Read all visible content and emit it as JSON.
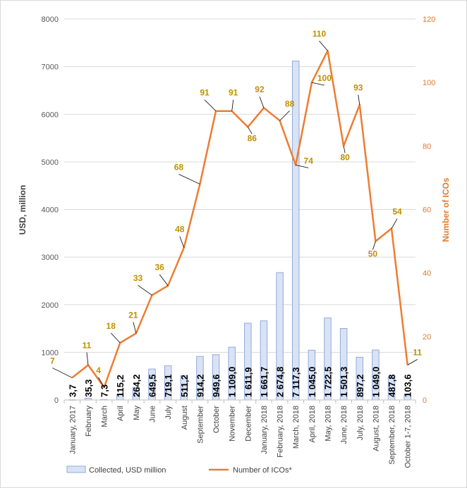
{
  "chart_data": {
    "type": "bar+line",
    "title": "",
    "categories": [
      "January, 2017",
      "February",
      "March",
      "April",
      "May",
      "June",
      "July",
      "August",
      "September",
      "October",
      "November",
      "December",
      "January, 2018",
      "February, 2018",
      "March, 2018",
      "April, 2018",
      "May, 2018",
      "June, 2018",
      "July, 2018",
      "August, 2018",
      "September, 2018",
      "October 1-7, 2018"
    ],
    "series": [
      {
        "name": "Collected, USD million",
        "type": "bar",
        "axis": "left",
        "color": "#dae3f3",
        "border": "#8faadc",
        "values": [
          3.7,
          35.3,
          7.3,
          115.2,
          264.2,
          649.5,
          719.1,
          511.2,
          914.2,
          949.6,
          1109.0,
          1611.9,
          1661.7,
          2674.8,
          7117.3,
          1045.0,
          1722.5,
          1501.3,
          897.2,
          1049.0,
          487.8,
          103.6
        ],
        "labels": [
          "3,7",
          "35,3",
          "7,3",
          "115,2",
          "264,2",
          "649,5",
          "719,1",
          "511,2",
          "914,2",
          "949,6",
          "1 109,0",
          "1 611,9",
          "1 661,7",
          "2 674,8",
          "7 117,3",
          "1 045,0",
          "1 722,5",
          "1 501,3",
          "897,2",
          "1 049,0",
          "487,8",
          "103,6"
        ]
      },
      {
        "name": "Number of ICOs*",
        "type": "line",
        "axis": "right",
        "color": "#ed7d31",
        "values": [
          7,
          11,
          4,
          18,
          21,
          33,
          36,
          48,
          68,
          91,
          91,
          86,
          92,
          88,
          74,
          100,
          110,
          80,
          93,
          50,
          54,
          11
        ],
        "labels": [
          "7",
          "11",
          "4",
          "18",
          "21",
          "33",
          "36",
          "48",
          "68",
          "91",
          "91",
          "86",
          "92",
          "88",
          "74",
          "100",
          "110",
          "80",
          "93",
          "50",
          "54",
          "11"
        ]
      }
    ],
    "ylabel": "USD, million",
    "ylabel_right": "Number of ICOs",
    "ylim": [
      0,
      8000
    ],
    "ylim_right": [
      0,
      120
    ],
    "yticks": [
      0,
      1000,
      2000,
      3000,
      4000,
      5000,
      6000,
      7000,
      8000
    ],
    "yticks_right": [
      0,
      20,
      40,
      60,
      80,
      100,
      120
    ],
    "grid": true,
    "legend_position": "bottom"
  }
}
